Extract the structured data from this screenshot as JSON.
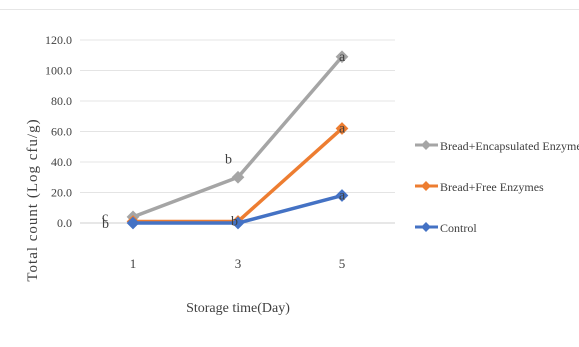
{
  "chart_data": {
    "type": "line",
    "title": "",
    "xlabel": "Storage time(Day)",
    "ylabel": "Total count (Log cfu/g)",
    "categories": [
      "1",
      "3",
      "5"
    ],
    "ylim": [
      0,
      120
    ],
    "yticks": [
      "0.0",
      "20.0",
      "40.0",
      "60.0",
      "80.0",
      "100.0",
      "120.0"
    ],
    "grid": true,
    "legend_position": "right",
    "series": [
      {
        "name": "Bread+Encapsulated Enzymes",
        "values": [
          4,
          30,
          109
        ],
        "color": "#a5a5a5",
        "labels": [
          "c",
          "b",
          "a"
        ]
      },
      {
        "name": "Bread+Free Enzymes",
        "values": [
          1,
          1,
          62
        ],
        "color": "#ed7d31",
        "labels": [
          "",
          "b",
          "a"
        ]
      },
      {
        "name": "Control",
        "values": [
          0,
          0,
          18
        ],
        "color": "#4472c4",
        "labels": [
          "b",
          "",
          "a"
        ]
      }
    ]
  }
}
